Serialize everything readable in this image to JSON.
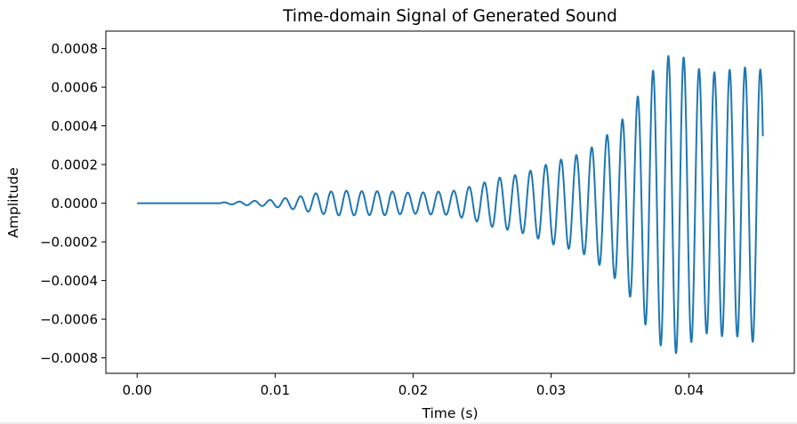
{
  "chart_data": {
    "type": "line",
    "title": "Time-domain Signal of Generated Sound",
    "xlabel": "Time (s)",
    "ylabel": "Amplitude",
    "xlim": [
      -0.00227,
      0.04763
    ],
    "ylim": [
      -0.00088,
      0.00089
    ],
    "xticks": [
      0.0,
      0.01,
      0.02,
      0.03,
      0.04
    ],
    "xtick_labels": [
      "0.00",
      "0.01",
      "0.02",
      "0.03",
      "0.04"
    ],
    "yticks": [
      -0.0008,
      -0.0006,
      -0.0004,
      -0.0002,
      0.0,
      0.0002,
      0.0004,
      0.0006,
      0.0008
    ],
    "ytick_labels": [
      "−0.0008",
      "−0.0006",
      "−0.0004",
      "−0.0002",
      "0.0000",
      "0.0002",
      "0.0004",
      "0.0006",
      "0.0008"
    ],
    "grid": false,
    "legend": false,
    "series": [
      {
        "color": "#1f77b4",
        "x_range": [
          0.0,
          0.04535
        ],
        "peaks": [
          [
            0.0062,
            4e-06
          ],
          [
            0.0073,
            8e-06
          ],
          [
            0.0084,
            1.2e-05
          ],
          [
            0.0095,
            1.6e-05
          ],
          [
            0.0106,
            2.5e-05
          ],
          [
            0.0117,
            3.4e-05
          ],
          [
            0.0128,
            5e-05
          ],
          [
            0.0139,
            6e-05
          ],
          [
            0.015,
            6.5e-05
          ],
          [
            0.0161,
            6.2e-05
          ],
          [
            0.0172,
            6.2e-05
          ],
          [
            0.0183,
            6.2e-05
          ],
          [
            0.0194,
            5.5e-05
          ],
          [
            0.0205,
            5.5e-05
          ],
          [
            0.0216,
            6e-05
          ],
          [
            0.0227,
            6e-05
          ],
          [
            0.0238,
            8e-05
          ],
          [
            0.0249,
            0.0001
          ],
          [
            0.026,
            0.00013
          ],
          [
            0.0271,
            0.00014
          ],
          [
            0.0282,
            0.00016
          ],
          [
            0.0293,
            0.00019
          ],
          [
            0.0304,
            0.00022
          ],
          [
            0.0315,
            0.00024
          ],
          [
            0.0326,
            0.00027
          ],
          [
            0.0337,
            0.00033
          ],
          [
            0.0348,
            0.0004
          ],
          [
            0.0359,
            0.0005
          ],
          [
            0.037,
            0.00065
          ],
          [
            0.0381,
            0.00075
          ],
          [
            0.0392,
            0.00078
          ],
          [
            0.0403,
            0.00071
          ],
          [
            0.0414,
            0.00067
          ],
          [
            0.0425,
            0.00069
          ],
          [
            0.0436,
            0.00069
          ],
          [
            0.0447,
            0.00072
          ],
          [
            0.04535,
            0.00068
          ]
        ],
        "oscillation_frequency_hz": 900,
        "onset_time": 0.006
      }
    ]
  }
}
